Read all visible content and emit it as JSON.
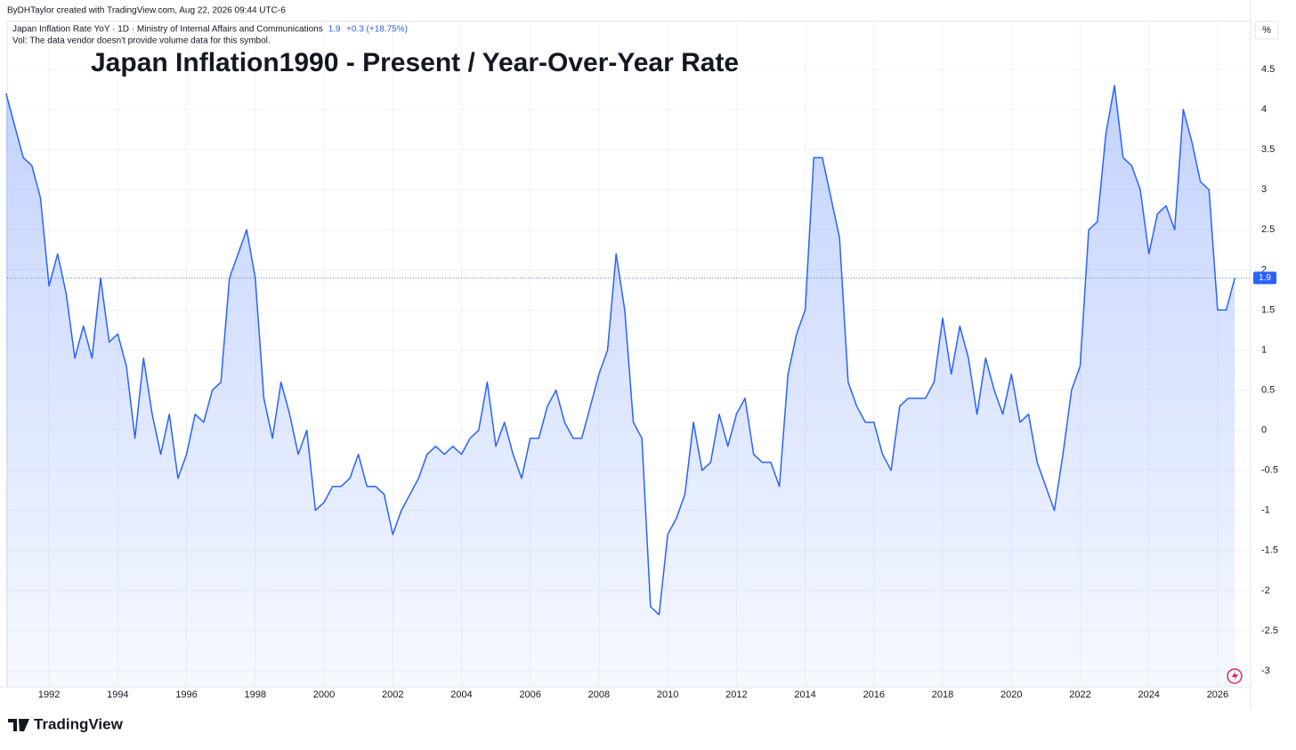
{
  "chart_data": {
    "type": "area",
    "title": "Japan Inflation1990 - Present / Year-Over-Year Rate",
    "attribution": "ByDHTaylor created with TradingView.com, Aug 22, 2026 09:44 UTC-6",
    "symbol_title": "Japan Inflation Rate YoY · 1D · Ministry of Internal Affairs and Communications",
    "legend_value": "1.9",
    "legend_change": "+0.3 (+18.75%)",
    "volume_note": "Vol: The data vendor doesn't provide volume data for this symbol.",
    "unit_label": "%",
    "brand": "TradingView",
    "color": "#2962ff",
    "grid": true,
    "x": [
      1990.75,
      1991,
      1991.25,
      1991.5,
      1991.75,
      1992,
      1992.25,
      1992.5,
      1992.75,
      1993,
      1993.25,
      1993.5,
      1993.75,
      1994,
      1994.25,
      1994.5,
      1994.75,
      1995,
      1995.25,
      1995.5,
      1995.75,
      1996,
      1996.25,
      1996.5,
      1996.75,
      1997,
      1997.25,
      1997.5,
      1997.75,
      1998,
      1998.25,
      1998.5,
      1998.75,
      1999,
      1999.25,
      1999.5,
      1999.75,
      2000,
      2000.25,
      2000.5,
      2000.75,
      2001,
      2001.25,
      2001.5,
      2001.75,
      2002,
      2002.25,
      2002.5,
      2002.75,
      2003,
      2003.25,
      2003.5,
      2003.75,
      2004,
      2004.25,
      2004.5,
      2004.75,
      2005,
      2005.25,
      2005.5,
      2005.75,
      2006,
      2006.25,
      2006.5,
      2006.75,
      2007,
      2007.25,
      2007.5,
      2007.75,
      2008,
      2008.25,
      2008.5,
      2008.75,
      2009,
      2009.25,
      2009.5,
      2009.75,
      2010,
      2010.25,
      2010.5,
      2010.75,
      2011,
      2011.25,
      2011.5,
      2011.75,
      2012,
      2012.25,
      2012.5,
      2012.75,
      2013,
      2013.25,
      2013.5,
      2013.75,
      2014,
      2014.25,
      2014.5,
      2014.75,
      2015,
      2015.25,
      2015.5,
      2015.75,
      2016,
      2016.25,
      2016.5,
      2016.75,
      2017,
      2017.25,
      2017.5,
      2017.75,
      2018,
      2018.25,
      2018.5,
      2018.75,
      2019,
      2019.25,
      2019.5,
      2019.75,
      2020,
      2020.25,
      2020.5,
      2020.75,
      2021,
      2021.25,
      2021.5,
      2021.75,
      2022,
      2022.25,
      2022.5,
      2022.75,
      2023,
      2023.25,
      2023.5,
      2023.75,
      2024,
      2024.25,
      2024.5,
      2024.75,
      2025,
      2025.25,
      2025.5,
      2025.75,
      2026,
      2026.25,
      2026.5
    ],
    "values": [
      4.2,
      3.8,
      3.4,
      3.3,
      2.9,
      1.8,
      2.2,
      1.7,
      0.9,
      1.3,
      0.9,
      1.9,
      1.1,
      1.2,
      0.8,
      -0.1,
      0.9,
      0.2,
      -0.3,
      0.2,
      -0.6,
      -0.3,
      0.2,
      0.1,
      0.5,
      0.6,
      1.9,
      2.2,
      2.5,
      1.9,
      0.4,
      -0.1,
      0.6,
      0.2,
      -0.3,
      0,
      -1.0,
      -0.9,
      -0.7,
      -0.7,
      -0.6,
      -0.3,
      -0.7,
      -0.7,
      -0.8,
      -1.3,
      -1.0,
      -0.8,
      -0.6,
      -0.3,
      -0.2,
      -0.3,
      -0.2,
      -0.3,
      -0.1,
      0,
      0.6,
      -0.2,
      0.1,
      -0.3,
      -0.6,
      -0.1,
      -0.1,
      0.3,
      0.5,
      0.1,
      -0.1,
      -0.1,
      0.3,
      0.7,
      1.0,
      2.2,
      1.5,
      0.1,
      -0.1,
      -2.2,
      -2.3,
      -1.3,
      -1.1,
      -0.8,
      0.1,
      -0.5,
      -0.4,
      0.2,
      -0.2,
      0.2,
      0.4,
      -0.3,
      -0.4,
      -0.4,
      -0.7,
      0.7,
      1.2,
      1.5,
      3.4,
      3.4,
      2.9,
      2.4,
      0.6,
      0.3,
      0.1,
      0.1,
      -0.3,
      -0.5,
      0.3,
      0.4,
      0.4,
      0.4,
      0.6,
      1.4,
      0.7,
      1.3,
      0.9,
      0.2,
      0.9,
      0.5,
      0.2,
      0.7,
      0.1,
      0.2,
      -0.4,
      -0.7,
      -1.0,
      -0.3,
      0.5,
      0.8,
      2.5,
      2.6,
      3.7,
      4.3,
      3.4,
      3.3,
      3.0,
      2.2,
      2.7,
      2.8,
      2.5,
      4.0,
      3.6,
      3.1,
      3.0,
      1.5,
      1.5,
      1.9
    ],
    "xlim": [
      1990.78,
      2026.96
    ],
    "xticks": [
      1992,
      1994,
      1996,
      1998,
      2000,
      2002,
      2004,
      2006,
      2008,
      2010,
      2012,
      2014,
      2016,
      2018,
      2020,
      2022,
      2024,
      2026
    ],
    "ylim": [
      -3.2,
      5.1
    ],
    "yticks": [
      -3,
      -2.5,
      -2,
      -1.5,
      -1,
      -0.5,
      0,
      0.5,
      1,
      1.5,
      2,
      2.5,
      3,
      3.5,
      4,
      4.5
    ]
  }
}
